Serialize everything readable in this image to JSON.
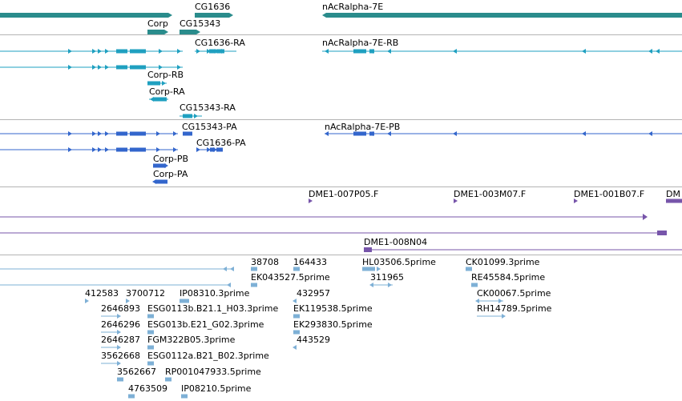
{
  "colors": {
    "gene": "#2a8c8c",
    "mrna": "#1fa0c0",
    "protein": "#3366cc",
    "clone": "#7755aa",
    "est": "#7eb0d6",
    "divider": "#b4b4b4"
  },
  "tracks": {
    "genes": {
      "labels": [
        "CG1636",
        "nAcRalpha-7E",
        "Corp",
        "CG15343"
      ]
    },
    "transcripts": {
      "labels": [
        "CG1636-RA",
        "nAcRalpha-7E-RB",
        "Corp-RB",
        "Corp-RA",
        "CG15343-RA"
      ]
    },
    "proteins": {
      "labels": [
        "CG15343-PA",
        "nAcRalpha-7E-PB",
        "CG1636-PA",
        "Corp-PB",
        "Corp-PA"
      ]
    },
    "clones": {
      "labels": [
        "DME1-007P05.F",
        "DME1-003M07.F",
        "DME1-001B07.F",
        "DM",
        "DME1-008N04"
      ]
    },
    "ests": {
      "labels": [
        "38708",
        "164433",
        "HL03506.5prime",
        "CK01099.3prime",
        "EK043527.5prime",
        "311965",
        "RE45584.5prime",
        "412583",
        "3700712",
        "IP08310.3prime",
        "432957",
        "CK00067.5prime",
        "2646893",
        "ESG0113b.B21.1_H03.3prime",
        "EK119538.5prime",
        "RH14789.5prime",
        "2646296",
        "ESG013b.E21_G02.3prime",
        "EK293830.5prime",
        "2646287",
        "FGM322B05.3prime",
        "443529",
        "3562668",
        "ESG0112a.B21_B02.3prime",
        "3562667",
        "RP001047933.5prime",
        "4763509",
        "IP08210.5prime"
      ]
    }
  }
}
